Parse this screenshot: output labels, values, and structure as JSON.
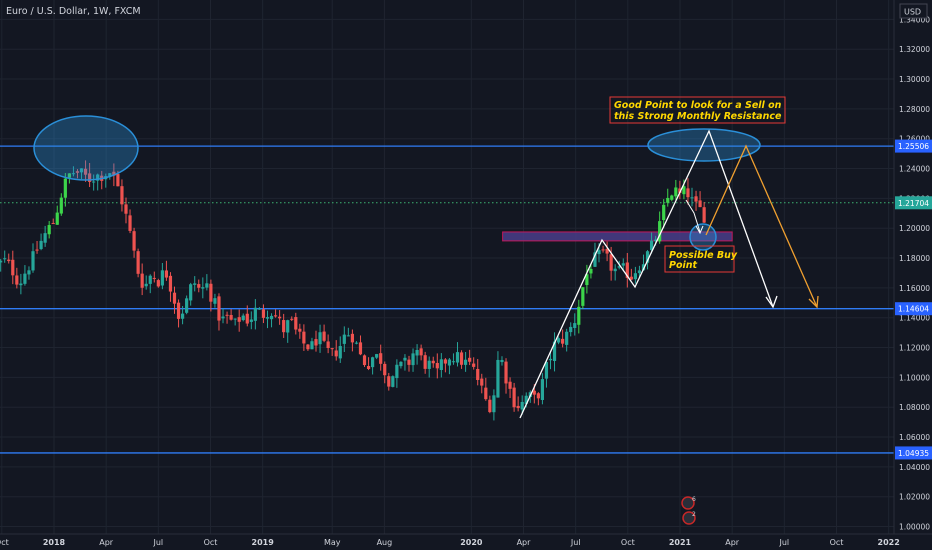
{
  "title": "Euro / U.S. Dollar, 1W, FXCM",
  "currency": "USD",
  "colors": {
    "background": "#131722",
    "text": "#d1d4dc",
    "grid": "#1f2430",
    "up": "#26a69a",
    "up_bright": "#3cd54a",
    "down": "#ef5350",
    "level_line": "#2f7cf6",
    "level_tag": "#2962ff",
    "current_price_line": "#3cb371",
    "current_tag": "#26a69a",
    "ellipse": "#2a8fd8",
    "zone": "#4a3d8a",
    "zone_border": "#c2185b",
    "annotation_text": "#ffd700",
    "annotation_border": "#e53935",
    "white_path": "#ffffff",
    "orange_path": "#f0a030"
  },
  "chart_data": {
    "type": "candlestick",
    "timeframe": "1W",
    "ylim": [
      0.995,
      1.353
    ],
    "y_ticks": [
      "1.34000",
      "1.32000",
      "1.30000",
      "1.28000",
      "1.26000",
      "1.24000",
      "1.22000",
      "1.20000",
      "1.18000",
      "1.16000",
      "1.14000",
      "1.12000",
      "1.10000",
      "1.08000",
      "1.06000",
      "1.04000",
      "1.02000",
      "1.00000"
    ],
    "x_ticks": [
      {
        "label": "Oct",
        "t": 0.0
      },
      {
        "label": "2018",
        "t": 3.0
      },
      {
        "label": "Apr",
        "t": 6.0
      },
      {
        "label": "Jul",
        "t": 9.0
      },
      {
        "label": "Oct",
        "t": 12.0
      },
      {
        "label": "2019",
        "t": 15.0
      },
      {
        "label": "May",
        "t": 19.0
      },
      {
        "label": "Aug",
        "t": 22.0
      },
      {
        "label": "2020",
        "t": 27.0
      },
      {
        "label": "Apr",
        "t": 30.0
      },
      {
        "label": "Jul",
        "t": 33.0
      },
      {
        "label": "Oct",
        "t": 36.0
      },
      {
        "label": "2021",
        "t": 39.0
      },
      {
        "label": "Apr",
        "t": 42.0
      },
      {
        "label": "Jul",
        "t": 45.0
      },
      {
        "label": "Oct",
        "t": 48.0
      },
      {
        "label": "2022",
        "t": 51.0
      }
    ],
    "levels": [
      {
        "value": 1.25506,
        "label": "1.25506"
      },
      {
        "value": 1.14604,
        "label": "1.14604"
      },
      {
        "value": 1.04935,
        "label": "1.04935"
      }
    ],
    "current_price": {
      "value": 1.21704,
      "label": "1.21704"
    },
    "close_path": [
      [
        -0.3,
        1.175
      ],
      [
        0.2,
        1.178
      ],
      [
        0.6,
        1.172
      ],
      [
        1.0,
        1.163
      ],
      [
        1.4,
        1.172
      ],
      [
        1.8,
        1.18
      ],
      [
        2.2,
        1.19
      ],
      [
        2.6,
        1.198
      ],
      [
        3.0,
        1.205
      ],
      [
        3.4,
        1.222
      ],
      [
        3.8,
        1.235
      ],
      [
        4.2,
        1.238
      ],
      [
        4.6,
        1.236
      ],
      [
        5.0,
        1.233
      ],
      [
        5.4,
        1.235
      ],
      [
        5.8,
        1.236
      ],
      [
        6.2,
        1.238
      ],
      [
        6.6,
        1.23
      ],
      [
        7.0,
        1.215
      ],
      [
        7.4,
        1.195
      ],
      [
        7.8,
        1.172
      ],
      [
        8.2,
        1.16
      ],
      [
        8.6,
        1.17
      ],
      [
        9.0,
        1.165
      ],
      [
        9.4,
        1.172
      ],
      [
        9.8,
        1.158
      ],
      [
        10.2,
        1.14
      ],
      [
        10.6,
        1.15
      ],
      [
        11.0,
        1.165
      ],
      [
        11.4,
        1.158
      ],
      [
        11.8,
        1.162
      ],
      [
        12.2,
        1.15
      ],
      [
        12.6,
        1.138
      ],
      [
        13.0,
        1.14
      ],
      [
        13.4,
        1.135
      ],
      [
        13.8,
        1.142
      ],
      [
        14.2,
        1.138
      ],
      [
        14.6,
        1.145
      ],
      [
        15.0,
        1.142
      ],
      [
        15.4,
        1.146
      ],
      [
        15.8,
        1.14
      ],
      [
        16.2,
        1.132
      ],
      [
        16.6,
        1.138
      ],
      [
        17.0,
        1.128
      ],
      [
        17.4,
        1.122
      ],
      [
        17.8,
        1.12
      ],
      [
        18.2,
        1.128
      ],
      [
        18.6,
        1.118
      ],
      [
        19.0,
        1.115
      ],
      [
        19.4,
        1.12
      ],
      [
        19.8,
        1.13
      ],
      [
        20.2,
        1.128
      ],
      [
        20.6,
        1.115
      ],
      [
        21.0,
        1.108
      ],
      [
        21.4,
        1.115
      ],
      [
        21.8,
        1.112
      ],
      [
        22.2,
        1.098
      ],
      [
        22.6,
        1.103
      ],
      [
        23.0,
        1.108
      ],
      [
        23.4,
        1.11
      ],
      [
        23.8,
        1.12
      ],
      [
        24.2,
        1.11
      ],
      [
        24.6,
        1.108
      ],
      [
        25.0,
        1.102
      ],
      [
        25.4,
        1.11
      ],
      [
        25.8,
        1.115
      ],
      [
        26.2,
        1.113
      ],
      [
        26.6,
        1.11
      ],
      [
        27.0,
        1.108
      ],
      [
        27.4,
        1.098
      ],
      [
        27.8,
        1.085
      ],
      [
        28.2,
        1.08
      ],
      [
        28.6,
        1.118
      ],
      [
        29.0,
        1.1
      ],
      [
        29.4,
        1.085
      ],
      [
        29.8,
        1.08
      ],
      [
        30.2,
        1.088
      ],
      [
        30.6,
        1.085
      ],
      [
        31.0,
        1.092
      ],
      [
        31.4,
        1.11
      ],
      [
        31.8,
        1.122
      ],
      [
        32.2,
        1.125
      ],
      [
        32.6,
        1.13
      ],
      [
        33.0,
        1.14
      ],
      [
        33.4,
        1.16
      ],
      [
        33.8,
        1.175
      ],
      [
        34.2,
        1.18
      ],
      [
        34.6,
        1.182
      ],
      [
        35.0,
        1.175
      ],
      [
        35.4,
        1.17
      ],
      [
        35.8,
        1.172
      ],
      [
        36.2,
        1.168
      ],
      [
        36.6,
        1.175
      ],
      [
        37.0,
        1.18
      ],
      [
        37.4,
        1.188
      ],
      [
        37.8,
        1.2
      ],
      [
        38.2,
        1.218
      ],
      [
        38.6,
        1.226
      ],
      [
        39.0,
        1.222
      ],
      [
        39.4,
        1.225
      ],
      [
        39.8,
        1.215
      ],
      [
        40.2,
        1.212
      ],
      [
        40.6,
        1.205
      ]
    ]
  },
  "annotations": {
    "sell_text_line1": "Good Point to look for a Sell on",
    "sell_text_line2": "this Strong Monthly  Resistance",
    "buy_text_line1": "Possible Buy",
    "buy_text_line2": "Point",
    "icon_badges": [
      "6",
      "2"
    ]
  }
}
